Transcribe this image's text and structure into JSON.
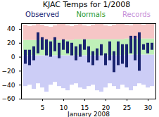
{
  "chart_data": {
    "type": "range bar",
    "title": "KJAC Temps for 1/2008",
    "x_label": "January 2008",
    "categories": [
      1,
      2,
      3,
      4,
      5,
      6,
      7,
      8,
      9,
      10,
      11,
      12,
      13,
      14,
      15,
      16,
      17,
      18,
      19,
      20,
      21,
      22,
      23,
      24,
      25,
      26,
      27,
      28,
      29,
      30,
      31
    ],
    "xticks": [
      5,
      10,
      15,
      20,
      25,
      30
    ],
    "ylim": [
      -60,
      48
    ],
    "yticks": [
      -60,
      -40,
      -20,
      0,
      20,
      40
    ],
    "grid": false,
    "series": [
      {
        "name": "Observed",
        "color": "#1a2470",
        "low": [
          -10,
          -12,
          -5,
          5,
          10,
          2,
          0,
          8,
          -2,
          10,
          5,
          2,
          -5,
          0,
          10,
          -8,
          -12,
          -5,
          2,
          -12,
          -5,
          -22,
          -12,
          -10,
          -15,
          5,
          -5,
          -20,
          10,
          5,
          10
        ],
        "high": [
          10,
          10,
          15,
          35,
          28,
          25,
          22,
          28,
          20,
          25,
          22,
          20,
          15,
          18,
          25,
          15,
          8,
          12,
          18,
          5,
          22,
          8,
          22,
          18,
          18,
          30,
          30,
          35,
          18,
          20,
          20
        ]
      },
      {
        "name": "Normals",
        "color": "#2e9a2e",
        "low": [
          2,
          2,
          2,
          2,
          2,
          2,
          2,
          2,
          2,
          2,
          2,
          2,
          2,
          2,
          2,
          2,
          2,
          2,
          2,
          2,
          2,
          2,
          2,
          2,
          3,
          3,
          3,
          3,
          3,
          3,
          3
        ],
        "high": [
          24,
          24,
          24,
          24,
          24,
          24,
          24,
          24,
          24,
          24,
          24,
          24,
          25,
          25,
          25,
          25,
          25,
          25,
          25,
          25,
          25,
          25,
          25,
          25,
          26,
          26,
          26,
          26,
          26,
          26,
          26
        ]
      },
      {
        "name": "Records",
        "color": "#c48ed8",
        "low": [
          -42,
          -40,
          -46,
          -38,
          -44,
          -50,
          -40,
          -36,
          -42,
          -45,
          -48,
          -40,
          -38,
          -44,
          -46,
          -42,
          -40,
          -48,
          -50,
          -44,
          -38,
          -42,
          -46,
          -40,
          -44,
          -48,
          -42,
          -38,
          -40,
          -44,
          -42
        ],
        "high": [
          46,
          44,
          45,
          47,
          46,
          44,
          43,
          45,
          48,
          47,
          45,
          44,
          46,
          47,
          45,
          44,
          46,
          48,
          47,
          45,
          44,
          46,
          47,
          48,
          46,
          45,
          47,
          48,
          46,
          47,
          48
        ]
      }
    ]
  }
}
